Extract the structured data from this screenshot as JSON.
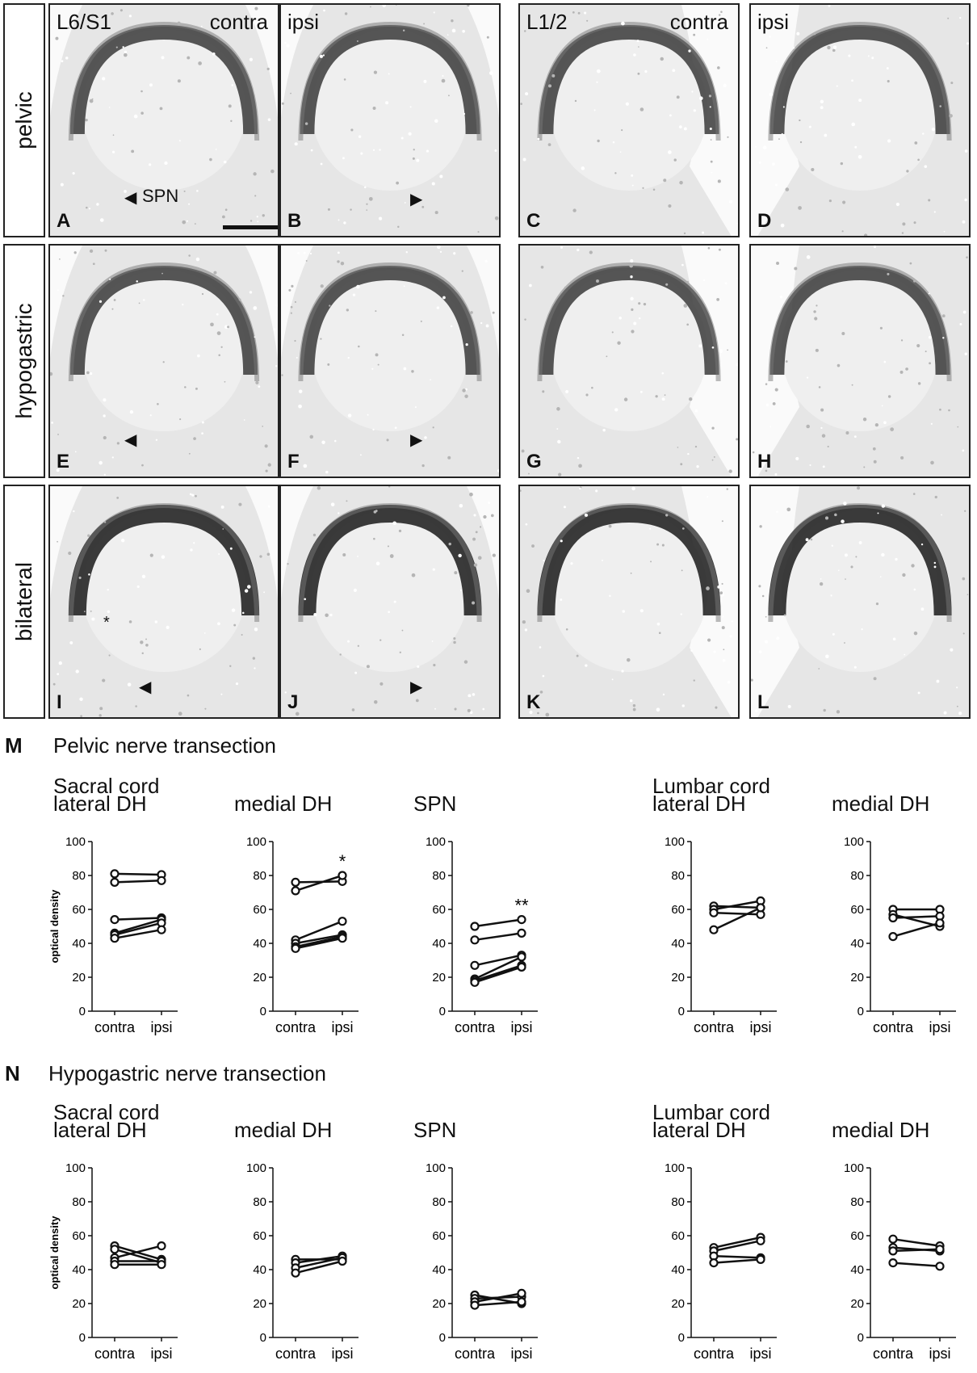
{
  "rows": [
    {
      "label": "pelvic"
    },
    {
      "label": "hypogastric"
    },
    {
      "label": "bilateral"
    }
  ],
  "panels": {
    "A": {
      "letter": "A",
      "level": "L6/S1",
      "side": "contra",
      "annotation": "SPN"
    },
    "B": {
      "letter": "B",
      "side": "ipsi"
    },
    "C": {
      "letter": "C",
      "level": "L1/2",
      "side": "contra"
    },
    "D": {
      "letter": "D",
      "side": "ipsi"
    },
    "E": {
      "letter": "E"
    },
    "F": {
      "letter": "F"
    },
    "G": {
      "letter": "G"
    },
    "H": {
      "letter": "H"
    },
    "I": {
      "letter": "I",
      "asterisk": "*"
    },
    "J": {
      "letter": "J"
    },
    "K": {
      "letter": "K"
    },
    "L": {
      "letter": "L"
    }
  },
  "sections": {
    "M": {
      "letter": "M",
      "title": "Pelvic nerve transection"
    },
    "N": {
      "letter": "N",
      "title": "Hypogastric nerve transection"
    },
    "sacral": "Sacral cord",
    "lumbar": "Lumbar cord"
  },
  "chart_data": [
    {
      "type": "line",
      "section": "M",
      "title": "lateral DH",
      "ylabel": "optical density",
      "categories": [
        "contra",
        "ipsi"
      ],
      "ylim": [
        0,
        100
      ],
      "yticks": [
        0,
        20,
        40,
        60,
        80,
        100
      ],
      "significance": "",
      "pairs": [
        [
          81,
          80.5
        ],
        [
          76,
          77
        ],
        [
          54,
          55
        ],
        [
          46,
          54
        ],
        [
          45,
          52
        ],
        [
          43,
          48
        ]
      ]
    },
    {
      "type": "line",
      "section": "M",
      "title": "medial DH",
      "ylabel": "",
      "categories": [
        "contra",
        "ipsi"
      ],
      "ylim": [
        0,
        100
      ],
      "yticks": [
        0,
        20,
        40,
        60,
        80,
        100
      ],
      "significance": "*",
      "pairs": [
        [
          76,
          76.5
        ],
        [
          71,
          80
        ],
        [
          42,
          53
        ],
        [
          40,
          45
        ],
        [
          38,
          44
        ],
        [
          37,
          43
        ]
      ]
    },
    {
      "type": "line",
      "section": "M",
      "title": "SPN",
      "ylabel": "",
      "categories": [
        "contra",
        "ipsi"
      ],
      "ylim": [
        0,
        100
      ],
      "yticks": [
        0,
        20,
        40,
        60,
        80,
        100
      ],
      "significance": "**",
      "pairs": [
        [
          50,
          54
        ],
        [
          42,
          46
        ],
        [
          27,
          33
        ],
        [
          19,
          32
        ],
        [
          18,
          27
        ],
        [
          17,
          26
        ]
      ]
    },
    {
      "type": "line",
      "section": "M",
      "title": "lateral DH",
      "ylabel": "",
      "categories": [
        "contra",
        "ipsi"
      ],
      "ylim": [
        0,
        100
      ],
      "yticks": [
        0,
        20,
        40,
        60,
        80,
        100
      ],
      "significance": "",
      "pairs": [
        [
          62,
          61
        ],
        [
          60,
          65
        ],
        [
          58,
          57
        ],
        [
          48,
          61
        ]
      ]
    },
    {
      "type": "line",
      "section": "M",
      "title": "medial DH",
      "ylabel": "",
      "categories": [
        "contra",
        "ipsi"
      ],
      "ylim": [
        0,
        100
      ],
      "yticks": [
        0,
        20,
        40,
        60,
        80,
        100
      ],
      "significance": "",
      "pairs": [
        [
          60,
          60
        ],
        [
          57,
          50
        ],
        [
          55,
          56
        ],
        [
          44,
          52
        ]
      ]
    },
    {
      "type": "line",
      "section": "N",
      "title": "lateral DH",
      "ylabel": "optical density",
      "categories": [
        "contra",
        "ipsi"
      ],
      "ylim": [
        0,
        100
      ],
      "yticks": [
        0,
        20,
        40,
        60,
        80,
        100
      ],
      "significance": "",
      "pairs": [
        [
          54,
          46
        ],
        [
          52,
          44
        ],
        [
          47,
          54
        ],
        [
          45,
          45
        ],
        [
          43,
          43
        ]
      ]
    },
    {
      "type": "line",
      "section": "N",
      "title": "medial DH",
      "ylabel": "",
      "categories": [
        "contra",
        "ipsi"
      ],
      "ylim": [
        0,
        100
      ],
      "yticks": [
        0,
        20,
        40,
        60,
        80,
        100
      ],
      "significance": "",
      "pairs": [
        [
          46,
          46
        ],
        [
          44,
          48
        ],
        [
          41,
          47
        ],
        [
          38,
          45
        ]
      ]
    },
    {
      "type": "line",
      "section": "N",
      "title": "SPN",
      "ylabel": "",
      "categories": [
        "contra",
        "ipsi"
      ],
      "ylim": [
        0,
        100
      ],
      "yticks": [
        0,
        20,
        40,
        60,
        80,
        100
      ],
      "significance": "",
      "pairs": [
        [
          25,
          20
        ],
        [
          23,
          24
        ],
        [
          21,
          26
        ],
        [
          19,
          21
        ]
      ]
    },
    {
      "type": "line",
      "section": "N",
      "title": "lateral DH",
      "ylabel": "",
      "categories": [
        "contra",
        "ipsi"
      ],
      "ylim": [
        0,
        100
      ],
      "yticks": [
        0,
        20,
        40,
        60,
        80,
        100
      ],
      "significance": "",
      "pairs": [
        [
          53,
          59
        ],
        [
          51,
          57
        ],
        [
          48,
          47
        ],
        [
          44,
          46
        ]
      ]
    },
    {
      "type": "line",
      "section": "N",
      "title": "medial DH",
      "ylabel": "",
      "categories": [
        "contra",
        "ipsi"
      ],
      "ylim": [
        0,
        100
      ],
      "yticks": [
        0,
        20,
        40,
        60,
        80,
        100
      ],
      "significance": "",
      "pairs": [
        [
          58,
          54
        ],
        [
          53,
          51
        ],
        [
          51,
          52
        ],
        [
          44,
          42
        ]
      ]
    }
  ]
}
